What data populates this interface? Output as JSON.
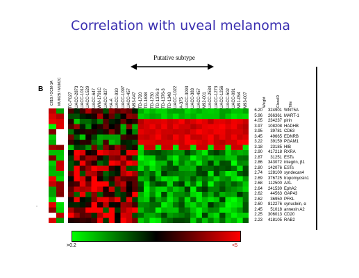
{
  "slide": {
    "title": "Correlation with uveal melanoma",
    "subtype_label": "Putative subtype",
    "panel_letter": "B",
    "tick_mark": "-"
  },
  "columns": [
    "TC-F027",
    "UACC-2873",
    "UACC-1012",
    "UACC-1529",
    "UACC-647",
    "WM-1791C",
    "UACC-827",
    "HA-A",
    "UACC-930",
    "UACC-1097",
    "UACC-457",
    "M93-047",
    "TD-1720",
    "TD-1638",
    "TD-1730",
    "TD-1376-3",
    "TD-1376-3",
    "TD-1348",
    "UACC-1022",
    "A-375",
    "UACC-3093",
    "UACC-383",
    "UACC-457",
    "M92-001",
    "UACC-2534",
    "UACC-1273",
    "UACC-1256",
    "UACC-502",
    "UACC-091",
    "M91-054",
    "M93-007"
  ],
  "side_columns": [
    "Clf1B / OCM-1A",
    "MUM2B / MUM2C"
  ],
  "table_headers": [
    "Weight",
    "CloneID",
    "Title"
  ],
  "genes": [
    {
      "weight": "6.20",
      "clone": "324901",
      "title": "WNT5A"
    },
    {
      "weight": "5.96",
      "clone": "266361",
      "title": "MART-1"
    },
    {
      "weight": "4.05",
      "clone": "234237",
      "title": "pirin"
    },
    {
      "weight": "3.97",
      "clone": "108208",
      "title": "HADHB"
    },
    {
      "weight": "3.95",
      "clone": "39781",
      "title": "CD63"
    },
    {
      "weight": "3.45",
      "clone": "49665",
      "title": "EDNRB"
    },
    {
      "weight": "3.22",
      "clone": "39159",
      "title": "PGAM1"
    },
    {
      "weight": "3.18",
      "clone": "23185",
      "title": "HIB"
    },
    {
      "weight": "2.90",
      "clone": "417218",
      "title": "RXRA"
    },
    {
      "weight": "2.87",
      "clone": "31251",
      "title": "ESTs"
    },
    {
      "weight": "2.86",
      "clone": "343072",
      "title": "integrin, β1"
    },
    {
      "weight": "2.80",
      "clone": "142076",
      "title": "ESTs"
    },
    {
      "weight": "2.74",
      "clone": "128100",
      "title": "syndecan4"
    },
    {
      "weight": "2.69",
      "clone": "376725",
      "title": "tropomyosin1"
    },
    {
      "weight": "2.68",
      "clone": "112500",
      "title": "AXL"
    },
    {
      "weight": "2.64",
      "clone": "241530",
      "title": "EphA2"
    },
    {
      "weight": "2.62",
      "clone": "44563",
      "title": "GAP43"
    },
    {
      "weight": "2.62",
      "clone": "36950",
      "title": "PFKL"
    },
    {
      "weight": "2.60",
      "clone": "812276",
      "title": "synuclein, α"
    },
    {
      "weight": "2.45",
      "clone": "51018",
      "title": "annexin A2"
    },
    {
      "weight": "2.25",
      "clone": "306013",
      "title": "CD20"
    },
    {
      "weight": "2.23",
      "clone": "418105",
      "title": "RAB2"
    }
  ],
  "scale": {
    "low_label": ">0.2",
    "high_label": "<5"
  },
  "colors": {
    "title": "#3a2fb0",
    "high": "#ff0000",
    "low": "#00ff00",
    "mid": "#000000"
  }
}
